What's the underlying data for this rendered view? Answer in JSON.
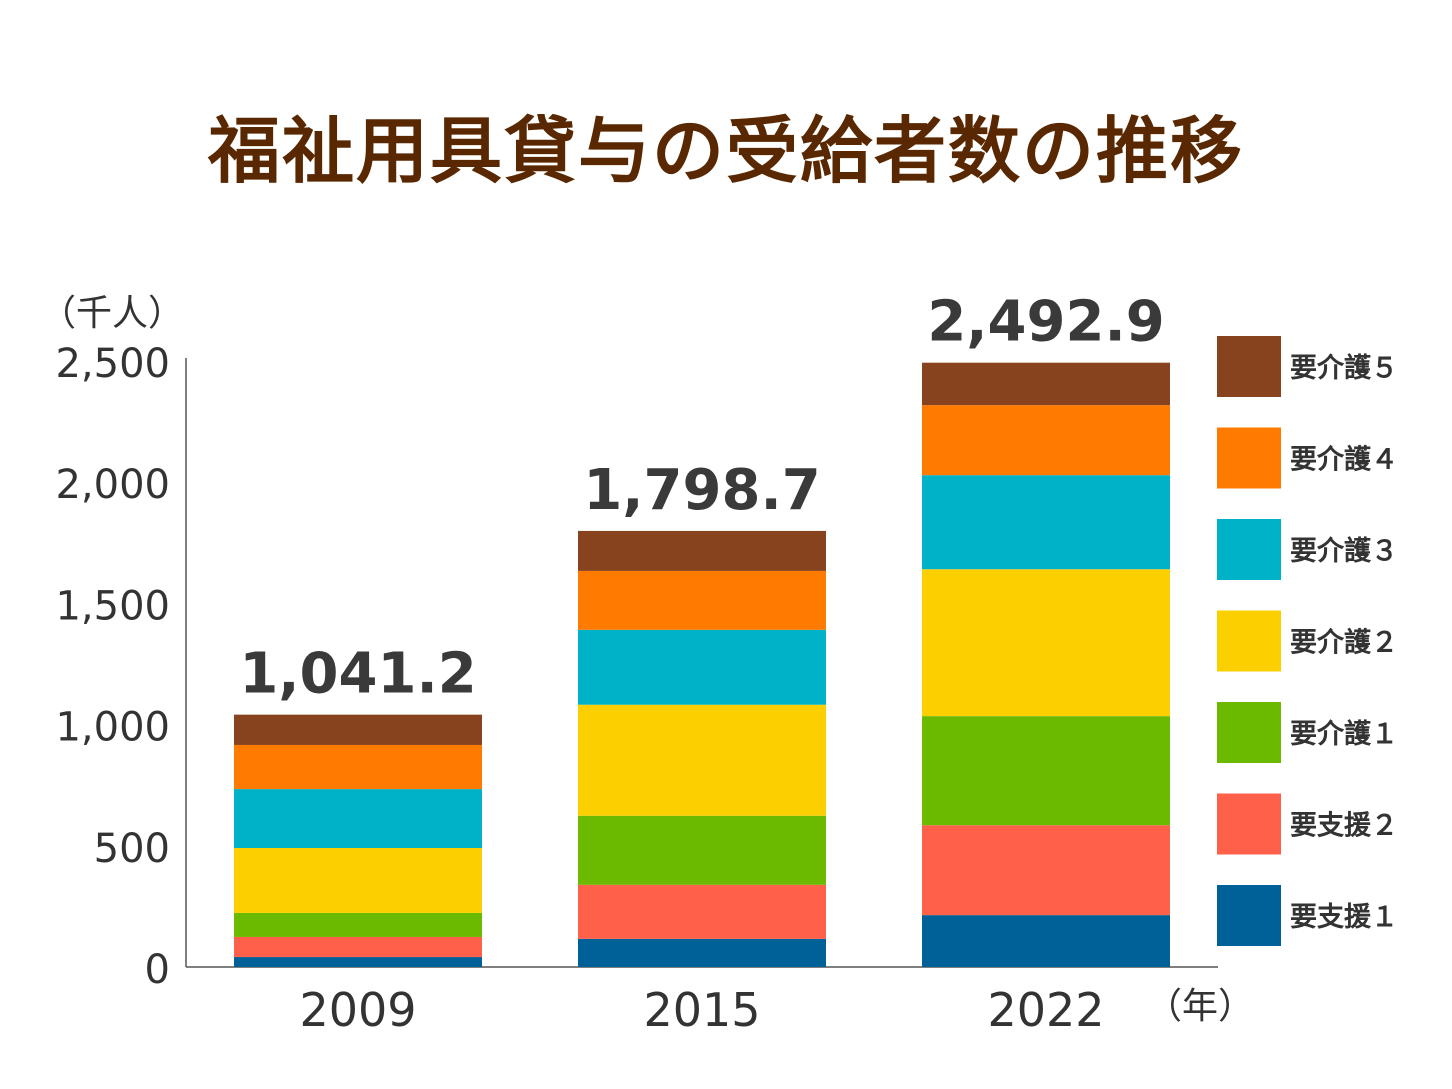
{
  "chart_data": {
    "type": "bar",
    "stacked": true,
    "title": "福祉用具貸与の受給者数の推移",
    "ylabel": "（千人）",
    "xlabel": "（年）",
    "ylim": [
      0,
      2500
    ],
    "yticks": [
      0,
      500,
      1000,
      1500,
      2000,
      2500
    ],
    "ytick_labels": [
      "0",
      "500",
      "1,000",
      "1,500",
      "2,000",
      "2,500"
    ],
    "categories": [
      "2009",
      "2015",
      "2022"
    ],
    "totals": [
      "1,041.2",
      "1,798.7",
      "2,492.9"
    ],
    "legend_position": "right",
    "series": [
      {
        "name": "要支援１",
        "color": "#006098",
        "values": [
          41,
          116,
          214
        ]
      },
      {
        "name": "要支援２",
        "color": "#ff604a",
        "values": [
          83,
          223,
          371
        ]
      },
      {
        "name": "要介護１",
        "color": "#6cba00",
        "values": [
          99,
          285,
          450
        ]
      },
      {
        "name": "要介護２",
        "color": "#fccf00",
        "values": [
          268,
          458,
          606
        ]
      },
      {
        "name": "要介護３",
        "color": "#00b2c8",
        "values": [
          243,
          309,
          388
        ]
      },
      {
        "name": "要介護４",
        "color": "#ff7b00",
        "values": [
          182,
          243,
          289
        ]
      },
      {
        "name": "要介護５",
        "color": "#86431e",
        "values": [
          125,
          165,
          175
        ]
      }
    ]
  }
}
